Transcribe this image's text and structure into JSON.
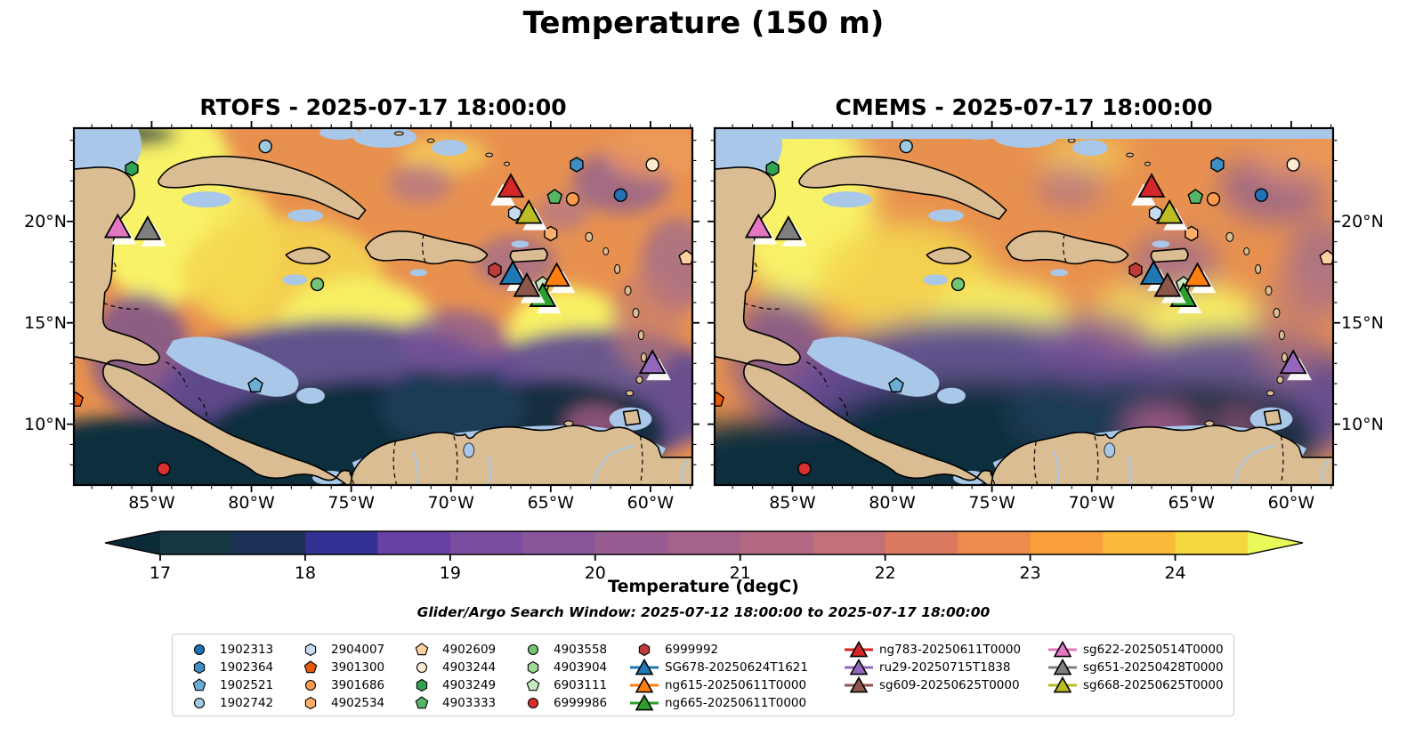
{
  "title": "Temperature (150 m)",
  "panels": [
    {
      "model": "RTOFS",
      "title": "RTOFS - 2025-07-17 18:00:00"
    },
    {
      "model": "CMEMS",
      "title": "CMEMS - 2025-07-17 18:00:00"
    }
  ],
  "subtitle": "Glider/Argo Search Window: 2025-07-12 18:00:00 to 2025-07-17 18:00:00",
  "axes": {
    "x_ticks": [
      {
        "deg": 85,
        "label": "85°W"
      },
      {
        "deg": 80,
        "label": "80°W"
      },
      {
        "deg": 75,
        "label": "75°W"
      },
      {
        "deg": 70,
        "label": "70°W"
      },
      {
        "deg": 65,
        "label": "65°W"
      },
      {
        "deg": 60,
        "label": "60°W"
      }
    ],
    "y_ticks": [
      {
        "deg": 20,
        "label": "20°N"
      },
      {
        "deg": 15,
        "label": "15°N"
      },
      {
        "deg": 10,
        "label": "10°N"
      }
    ]
  },
  "colorbar": {
    "label": "Temperature (degC)",
    "ticks": [
      17,
      18,
      19,
      20,
      21,
      22,
      23,
      24
    ],
    "range": [
      17,
      24.5
    ],
    "step": 0.5,
    "under": "#0c2b38",
    "over": "#e9f95a",
    "segments": [
      "#163845",
      "#1c3158",
      "#343195",
      "#6941a5",
      "#7b4da0",
      "#8a569a",
      "#975d92",
      "#a5638b",
      "#b36983",
      "#c2707a",
      "#da7a61",
      "#ee8a4b",
      "#f89e3a",
      "#fbb93a",
      "#f3d93f"
    ]
  },
  "chart_data": {
    "type": "filled-contour-map",
    "variable": "Temperature",
    "unit": "degC",
    "depth_m": 150,
    "models": [
      "RTOFS",
      "CMEMS"
    ],
    "valid_time": "2025-07-17 18:00:00",
    "search_window": [
      "2025-07-12 18:00:00",
      "2025-07-17 18:00:00"
    ],
    "lon_range_degW": [
      88.9,
      57.9
    ],
    "lat_range_degN": [
      7.0,
      24.6
    ],
    "platforms": [
      {
        "id": "1902313",
        "kind": "argo",
        "shape": "circle",
        "color": "#2171b5",
        "lon_w": 61.5,
        "lat_n": 21.3
      },
      {
        "id": "1902364",
        "kind": "argo",
        "shape": "hexagon",
        "color": "#3f8fc4",
        "lon_w": 63.7,
        "lat_n": 22.8
      },
      {
        "id": "1902521",
        "kind": "argo",
        "shape": "pentagon",
        "color": "#6baed6",
        "lon_w": 79.8,
        "lat_n": 11.9
      },
      {
        "id": "1902742",
        "kind": "argo",
        "shape": "circle",
        "color": "#9ecae1",
        "lon_w": 79.3,
        "lat_n": 23.7
      },
      {
        "id": "2904007",
        "kind": "argo",
        "shape": "hexagon",
        "color": "#c6dbef",
        "lon_w": 66.8,
        "lat_n": 20.4
      },
      {
        "id": "3901300",
        "kind": "argo",
        "shape": "pentagon",
        "color": "#e8590c",
        "lon_w": 88.8,
        "lat_n": 11.2
      },
      {
        "id": "3901686",
        "kind": "argo",
        "shape": "circle",
        "color": "#fd9b4a",
        "lon_w": 63.9,
        "lat_n": 21.1
      },
      {
        "id": "4902534",
        "kind": "argo",
        "shape": "hexagon",
        "color": "#fdae6b",
        "lon_w": 65.0,
        "lat_n": 19.4
      },
      {
        "id": "4902609",
        "kind": "argo",
        "shape": "pentagon",
        "color": "#fdd0a2",
        "lon_w": 58.2,
        "lat_n": 18.2
      },
      {
        "id": "4903244",
        "kind": "argo",
        "shape": "circle",
        "color": "#fdead2",
        "lon_w": 59.9,
        "lat_n": 22.8
      },
      {
        "id": "4903249",
        "kind": "argo",
        "shape": "hexagon",
        "color": "#31a354",
        "lon_w": 86.0,
        "lat_n": 22.6
      },
      {
        "id": "4903333",
        "kind": "argo",
        "shape": "pentagon",
        "color": "#56b567",
        "lon_w": 64.8,
        "lat_n": 21.2
      },
      {
        "id": "4903558",
        "kind": "argo",
        "shape": "circle",
        "color": "#74c476",
        "lon_w": 76.7,
        "lat_n": 16.9
      },
      {
        "id": "4903904",
        "kind": "argo",
        "shape": "hexagon",
        "color": "#a1d99b"
      },
      {
        "id": "6903111",
        "kind": "argo",
        "shape": "pentagon",
        "color": "#c7e9c0",
        "lon_w": 65.4,
        "lat_n": 16.9
      },
      {
        "id": "6999986",
        "kind": "argo",
        "shape": "circle",
        "color": "#d7302e",
        "lon_w": 84.4,
        "lat_n": 7.8
      },
      {
        "id": "6999992",
        "kind": "argo",
        "shape": "hexagon",
        "color": "#c03a38",
        "lon_w": 67.8,
        "lat_n": 17.6
      },
      {
        "id": "SG678-20250624T1621",
        "kind": "glider",
        "shape": "triangle",
        "color": "#1f77b4",
        "lon_w": 66.9,
        "lat_n": 17.4
      },
      {
        "id": "ng615-20250611T0000",
        "kind": "glider",
        "shape": "triangle",
        "color": "#ff7f0e",
        "lon_w": 64.7,
        "lat_n": 17.3
      },
      {
        "id": "ng665-20250611T0000",
        "kind": "glider",
        "shape": "triangle",
        "color": "#2ca02c",
        "lon_w": 65.4,
        "lat_n": 16.3
      },
      {
        "id": "ng783-20250611T0000",
        "kind": "glider",
        "shape": "triangle",
        "color": "#d62728",
        "lon_w": 67.0,
        "lat_n": 21.7
      },
      {
        "id": "ru29-20250715T1838",
        "kind": "glider",
        "shape": "triangle",
        "color": "#9467bd",
        "lon_w": 59.9,
        "lat_n": 13.0
      },
      {
        "id": "sg609-20250625T0000",
        "kind": "glider",
        "shape": "triangle",
        "color": "#8c564b",
        "lon_w": 66.2,
        "lat_n": 16.8
      },
      {
        "id": "sg622-20250514T0000",
        "kind": "glider",
        "shape": "triangle",
        "color": "#e377c2",
        "lon_w": 86.7,
        "lat_n": 19.7
      },
      {
        "id": "sg651-20250428T0000",
        "kind": "glider",
        "shape": "triangle",
        "color": "#7f7f7f",
        "lon_w": 85.2,
        "lat_n": 19.6
      },
      {
        "id": "sg668-20250625T0000",
        "kind": "glider",
        "shape": "triangle",
        "color": "#bcbd22",
        "lon_w": 66.1,
        "lat_n": 20.4
      }
    ]
  },
  "legend": {
    "columns": [
      [
        "1902313",
        "1902364",
        "1902521",
        "1902742"
      ],
      [
        "2904007",
        "3901300",
        "3901686",
        "4902534"
      ],
      [
        "4902609",
        "4903244",
        "4903249",
        "4903333"
      ],
      [
        "4903558",
        "4903904",
        "6903111",
        "6999986"
      ],
      [
        "6999992",
        "SG678-20250624T1621",
        "ng615-20250611T0000",
        "ng665-20250611T0000"
      ],
      [
        "ng783-20250611T0000",
        "ru29-20250715T1838",
        "sg609-20250625T0000"
      ],
      [
        "sg622-20250514T0000",
        "sg651-20250428T0000",
        "sg668-20250625T0000"
      ]
    ]
  }
}
